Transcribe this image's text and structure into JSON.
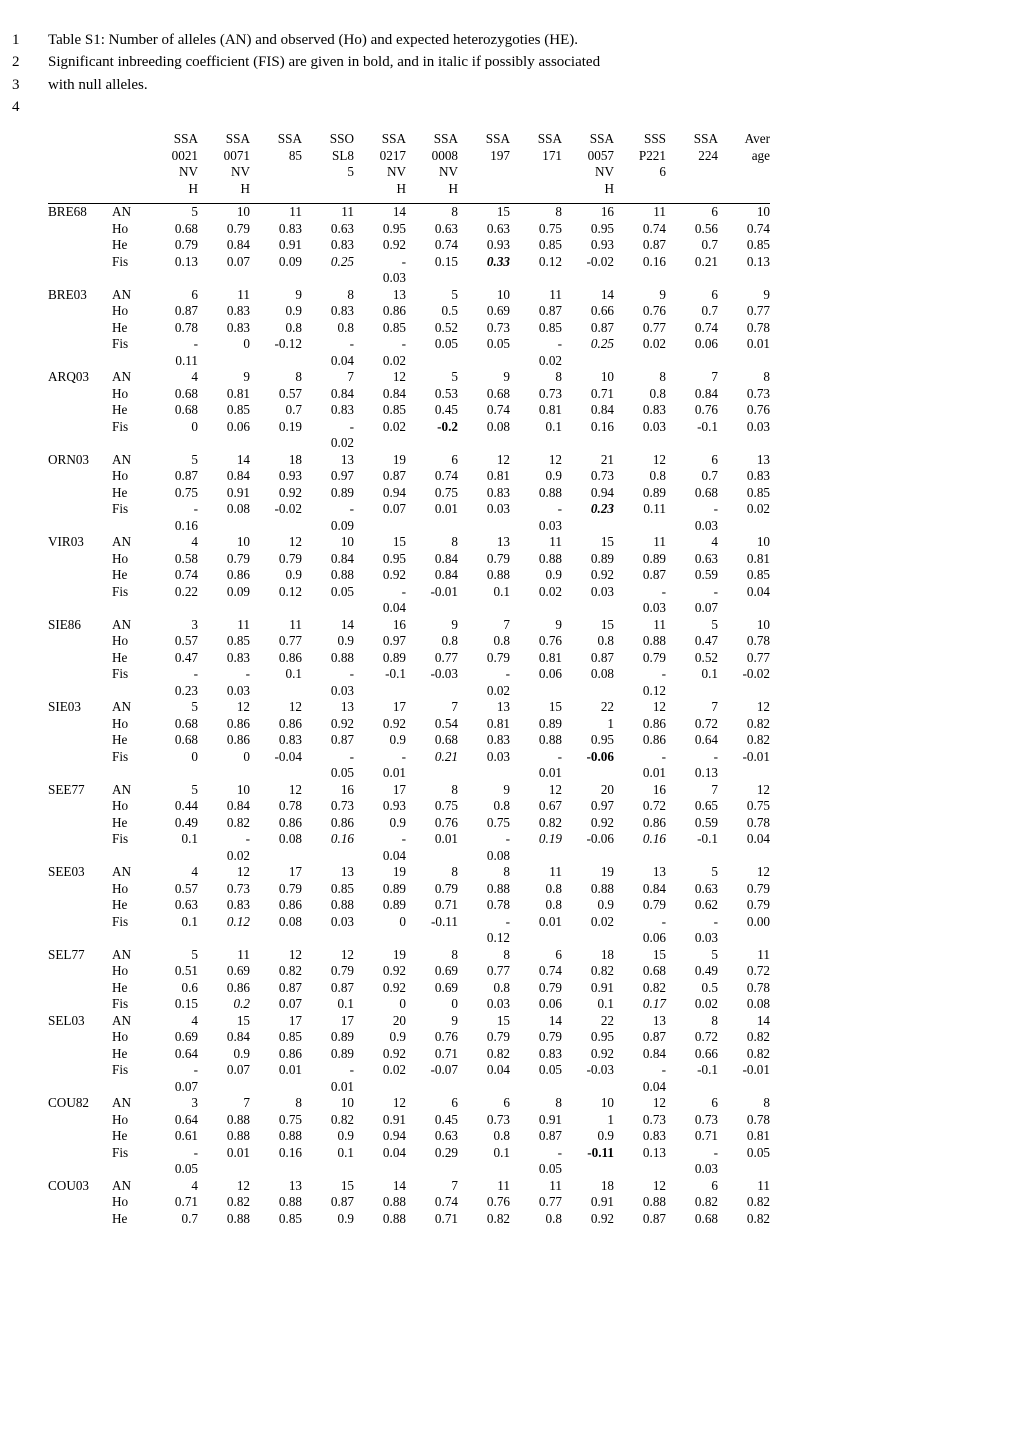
{
  "intro": [
    {
      "num": "1",
      "text": "Table S1: Number of alleles (AN) and observed (Ho) and expected heterozygoties (HE)."
    },
    {
      "num": "2",
      "text": "Significant inbreeding coefficient (FIS) are given in bold, and in italic if possibly associated"
    },
    {
      "num": "3",
      "text": "with null alleles."
    },
    {
      "num": "4",
      "text": ""
    }
  ],
  "headers": [
    [
      "",
      "",
      "SSA",
      "SSA",
      "SSA",
      "SSO",
      "SSA",
      "SSA",
      "SSA",
      "SSA",
      "SSA",
      "SSS",
      "SSA",
      "Aver"
    ],
    [
      "",
      "",
      "0021",
      "0071",
      "85",
      "SL8",
      "0217",
      "0008",
      "197",
      "171",
      "0057",
      "P221",
      "224",
      "age"
    ],
    [
      "",
      "",
      "NV",
      "NV",
      "",
      "5",
      "NV",
      "NV",
      "",
      "",
      "NV",
      "6",
      "",
      ""
    ],
    [
      "",
      "",
      "H",
      "H",
      "",
      "",
      "H",
      "H",
      "",
      "",
      "H",
      "",
      "",
      ""
    ]
  ],
  "groups": [
    {
      "name": "BRE68",
      "rows": [
        {
          "lbl": "AN",
          "v": [
            "5",
            "10",
            "11",
            "11",
            "14",
            "8",
            "15",
            "8",
            "16",
            "11",
            "6",
            "10"
          ]
        },
        {
          "lbl": "Ho",
          "v": [
            "0.68",
            "0.79",
            "0.83",
            "0.63",
            "0.95",
            "0.63",
            "0.63",
            "0.75",
            "0.95",
            "0.74",
            "0.56",
            "0.74"
          ]
        },
        {
          "lbl": "He",
          "v": [
            "0.79",
            "0.84",
            "0.91",
            "0.83",
            "0.92",
            "0.74",
            "0.93",
            "0.85",
            "0.93",
            "0.87",
            "0.7",
            "0.85"
          ]
        },
        {
          "lbl": "Fis",
          "v": [
            "0.13",
            "0.07",
            "0.09",
            {
              "t": "0.25",
              "c": "italic"
            },
            "-\n0.03",
            "0.15",
            {
              "t": "0.33",
              "c": "bolditalic"
            },
            "0.12",
            "-0.02",
            "0.16",
            "0.21",
            "0.13"
          ]
        }
      ]
    },
    {
      "name": "BRE03",
      "rows": [
        {
          "lbl": "AN",
          "v": [
            "6",
            "11",
            "9",
            "8",
            "13",
            "5",
            "10",
            "11",
            "14",
            "9",
            "6",
            "9"
          ]
        },
        {
          "lbl": "Ho",
          "v": [
            "0.87",
            "0.83",
            "0.9",
            "0.83",
            "0.86",
            "0.5",
            "0.69",
            "0.87",
            "0.66",
            "0.76",
            "0.7",
            "0.77"
          ]
        },
        {
          "lbl": "He",
          "v": [
            "0.78",
            "0.83",
            "0.8",
            "0.8",
            "0.85",
            "0.52",
            "0.73",
            "0.85",
            "0.87",
            "0.77",
            "0.74",
            "0.78"
          ]
        },
        {
          "lbl": "Fis",
          "v": [
            "-\n0.11",
            "0",
            "-0.12",
            "-\n0.04",
            "-\n0.02",
            "0.05",
            "0.05",
            "-\n0.02",
            {
              "t": "0.25",
              "c": "italic"
            },
            "0.02",
            "0.06",
            "0.01"
          ]
        }
      ]
    },
    {
      "name": "ARQ03",
      "rows": [
        {
          "lbl": "AN",
          "v": [
            "4",
            "9",
            "8",
            "7",
            "12",
            "5",
            "9",
            "8",
            "10",
            "8",
            "7",
            "8"
          ]
        },
        {
          "lbl": "Ho",
          "v": [
            "0.68",
            "0.81",
            "0.57",
            "0.84",
            "0.84",
            "0.53",
            "0.68",
            "0.73",
            "0.71",
            "0.8",
            "0.84",
            "0.73"
          ]
        },
        {
          "lbl": "He",
          "v": [
            "0.68",
            "0.85",
            "0.7",
            "0.83",
            "0.85",
            "0.45",
            "0.74",
            "0.81",
            "0.84",
            "0.83",
            "0.76",
            "0.76"
          ]
        },
        {
          "lbl": "Fis",
          "v": [
            "0",
            "0.06",
            "0.19",
            "-\n0.02",
            "0.02",
            {
              "t": "-0.2",
              "c": "bold"
            },
            "0.08",
            "0.1",
            "0.16",
            "0.03",
            "-0.1",
            "0.03"
          ]
        }
      ]
    },
    {
      "name": "ORN03",
      "rows": [
        {
          "lbl": "AN",
          "v": [
            "5",
            "14",
            "18",
            "13",
            "19",
            "6",
            "12",
            "12",
            "21",
            "12",
            "6",
            "13"
          ]
        },
        {
          "lbl": "Ho",
          "v": [
            "0.87",
            "0.84",
            "0.93",
            "0.97",
            "0.87",
            "0.74",
            "0.81",
            "0.9",
            "0.73",
            "0.8",
            "0.7",
            "0.83"
          ]
        },
        {
          "lbl": "He",
          "v": [
            "0.75",
            "0.91",
            "0.92",
            "0.89",
            "0.94",
            "0.75",
            "0.83",
            "0.88",
            "0.94",
            "0.89",
            "0.68",
            "0.85"
          ]
        },
        {
          "lbl": "Fis",
          "v": [
            "-\n0.16",
            "0.08",
            "-0.02",
            "-\n0.09",
            "0.07",
            "0.01",
            "0.03",
            "-\n0.03",
            {
              "t": "0.23",
              "c": "bolditalic"
            },
            "0.11",
            "-\n0.03",
            "0.02"
          ]
        }
      ]
    },
    {
      "name": "VIR03",
      "rows": [
        {
          "lbl": "AN",
          "v": [
            "4",
            "10",
            "12",
            "10",
            "15",
            "8",
            "13",
            "11",
            "15",
            "11",
            "4",
            "10"
          ]
        },
        {
          "lbl": "Ho",
          "v": [
            "0.58",
            "0.79",
            "0.79",
            "0.84",
            "0.95",
            "0.84",
            "0.79",
            "0.88",
            "0.89",
            "0.89",
            "0.63",
            "0.81"
          ]
        },
        {
          "lbl": "He",
          "v": [
            "0.74",
            "0.86",
            "0.9",
            "0.88",
            "0.92",
            "0.84",
            "0.88",
            "0.9",
            "0.92",
            "0.87",
            "0.59",
            "0.85"
          ]
        },
        {
          "lbl": "Fis",
          "v": [
            "0.22",
            "0.09",
            "0.12",
            "0.05",
            "-\n0.04",
            "-0.01",
            "0.1",
            "0.02",
            "0.03",
            "-\n0.03",
            "-\n0.07",
            "0.04"
          ]
        }
      ]
    },
    {
      "name": "SIE86",
      "rows": [
        {
          "lbl": "AN",
          "v": [
            "3",
            "11",
            "11",
            "14",
            "16",
            "9",
            "7",
            "9",
            "15",
            "11",
            "5",
            "10"
          ]
        },
        {
          "lbl": "Ho",
          "v": [
            "0.57",
            "0.85",
            "0.77",
            "0.9",
            "0.97",
            "0.8",
            "0.8",
            "0.76",
            "0.8",
            "0.88",
            "0.47",
            "0.78"
          ]
        },
        {
          "lbl": "He",
          "v": [
            "0.47",
            "0.83",
            "0.86",
            "0.88",
            "0.89",
            "0.77",
            "0.79",
            "0.81",
            "0.87",
            "0.79",
            "0.52",
            "0.77"
          ]
        },
        {
          "lbl": "Fis",
          "v": [
            "-\n0.23",
            "-\n0.03",
            "0.1",
            "-\n0.03",
            "-0.1",
            "-0.03",
            "-\n0.02",
            "0.06",
            "0.08",
            "-\n0.12",
            "0.1",
            "-0.02"
          ]
        }
      ]
    },
    {
      "name": "SIE03",
      "rows": [
        {
          "lbl": "AN",
          "v": [
            "5",
            "12",
            "12",
            "13",
            "17",
            "7",
            "13",
            "15",
            "22",
            "12",
            "7",
            "12"
          ]
        },
        {
          "lbl": "Ho",
          "v": [
            "0.68",
            "0.86",
            "0.86",
            "0.92",
            "0.92",
            "0.54",
            "0.81",
            "0.89",
            "1",
            "0.86",
            "0.72",
            "0.82"
          ]
        },
        {
          "lbl": "He",
          "v": [
            "0.68",
            "0.86",
            "0.83",
            "0.87",
            "0.9",
            "0.68",
            "0.83",
            "0.88",
            "0.95",
            "0.86",
            "0.64",
            "0.82"
          ]
        },
        {
          "lbl": "Fis",
          "v": [
            "0",
            "0",
            "-0.04",
            "-\n0.05",
            "-\n0.01",
            {
              "t": "0.21",
              "c": "italic"
            },
            "0.03",
            "-\n0.01",
            {
              "t": "-0.06",
              "c": "bold"
            },
            "-\n0.01",
            "-\n0.13",
            "-0.01"
          ]
        }
      ]
    },
    {
      "name": "SEE77",
      "rows": [
        {
          "lbl": "AN",
          "v": [
            "5",
            "10",
            "12",
            "16",
            "17",
            "8",
            "9",
            "12",
            "20",
            "16",
            "7",
            "12"
          ]
        },
        {
          "lbl": "Ho",
          "v": [
            "0.44",
            "0.84",
            "0.78",
            "0.73",
            "0.93",
            "0.75",
            "0.8",
            "0.67",
            "0.97",
            "0.72",
            "0.65",
            "0.75"
          ]
        },
        {
          "lbl": "He",
          "v": [
            "0.49",
            "0.82",
            "0.86",
            "0.86",
            "0.9",
            "0.76",
            "0.75",
            "0.82",
            "0.92",
            "0.86",
            "0.59",
            "0.78"
          ]
        },
        {
          "lbl": "Fis",
          "v": [
            "0.1",
            "-\n0.02",
            "0.08",
            {
              "t": "0.16",
              "c": "italic"
            },
            "-\n0.04",
            "0.01",
            "-\n0.08",
            {
              "t": "0.19",
              "c": "italic"
            },
            "-0.06",
            {
              "t": "0.16",
              "c": "italic"
            },
            "-0.1",
            "0.04"
          ]
        }
      ]
    },
    {
      "name": "SEE03",
      "rows": [
        {
          "lbl": "AN",
          "v": [
            "4",
            "12",
            "17",
            "13",
            "19",
            "8",
            "8",
            "11",
            "19",
            "13",
            "5",
            "12"
          ]
        },
        {
          "lbl": "Ho",
          "v": [
            "0.57",
            "0.73",
            "0.79",
            "0.85",
            "0.89",
            "0.79",
            "0.88",
            "0.8",
            "0.88",
            "0.84",
            "0.63",
            "0.79"
          ]
        },
        {
          "lbl": "He",
          "v": [
            "0.63",
            "0.83",
            "0.86",
            "0.88",
            "0.89",
            "0.71",
            "0.78",
            "0.8",
            "0.9",
            "0.79",
            "0.62",
            "0.79"
          ]
        },
        {
          "lbl": "Fis",
          "v": [
            "0.1",
            {
              "t": "0.12",
              "c": "italic"
            },
            "0.08",
            "0.03",
            "0",
            "-0.11",
            "-\n0.12",
            "0.01",
            "0.02",
            "-\n0.06",
            "-\n0.03",
            "0.00"
          ]
        }
      ]
    },
    {
      "name": "SEL77",
      "rows": [
        {
          "lbl": "AN",
          "v": [
            "5",
            "11",
            "12",
            "12",
            "19",
            "8",
            "8",
            "6",
            "18",
            "15",
            "5",
            "11"
          ]
        },
        {
          "lbl": "Ho",
          "v": [
            "0.51",
            "0.69",
            "0.82",
            "0.79",
            "0.92",
            "0.69",
            "0.77",
            "0.74",
            "0.82",
            "0.68",
            "0.49",
            "0.72"
          ]
        },
        {
          "lbl": "He",
          "v": [
            "0.6",
            "0.86",
            "0.87",
            "0.87",
            "0.92",
            "0.69",
            "0.8",
            "0.79",
            "0.91",
            "0.82",
            "0.5",
            "0.78"
          ]
        },
        {
          "lbl": "Fis",
          "v": [
            "0.15",
            {
              "t": "0.2",
              "c": "italic"
            },
            "0.07",
            "0.1",
            "0",
            "0",
            "0.03",
            "0.06",
            "0.1",
            {
              "t": "0.17",
              "c": "italic"
            },
            "0.02",
            "0.08"
          ]
        }
      ]
    },
    {
      "name": "SEL03",
      "rows": [
        {
          "lbl": "AN",
          "v": [
            "4",
            "15",
            "17",
            "17",
            "20",
            "9",
            "15",
            "14",
            "22",
            "13",
            "8",
            "14"
          ]
        },
        {
          "lbl": "Ho",
          "v": [
            "0.69",
            "0.84",
            "0.85",
            "0.89",
            "0.9",
            "0.76",
            "0.79",
            "0.79",
            "0.95",
            "0.87",
            "0.72",
            "0.82"
          ]
        },
        {
          "lbl": "He",
          "v": [
            "0.64",
            "0.9",
            "0.86",
            "0.89",
            "0.92",
            "0.71",
            "0.82",
            "0.83",
            "0.92",
            "0.84",
            "0.66",
            "0.82"
          ]
        },
        {
          "lbl": "Fis",
          "v": [
            "-\n0.07",
            "0.07",
            "0.01",
            "-\n0.01",
            "0.02",
            "-0.07",
            "0.04",
            "0.05",
            "-0.03",
            "-\n0.04",
            "-0.1",
            "-0.01"
          ]
        }
      ]
    },
    {
      "name": "COU82",
      "rows": [
        {
          "lbl": "AN",
          "v": [
            "3",
            "7",
            "8",
            "10",
            "12",
            "6",
            "6",
            "8",
            "10",
            "12",
            "6",
            "8"
          ]
        },
        {
          "lbl": "Ho",
          "v": [
            "0.64",
            "0.88",
            "0.75",
            "0.82",
            "0.91",
            "0.45",
            "0.73",
            "0.91",
            "1",
            "0.73",
            "0.73",
            "0.78"
          ]
        },
        {
          "lbl": "He",
          "v": [
            "0.61",
            "0.88",
            "0.88",
            "0.9",
            "0.94",
            "0.63",
            "0.8",
            "0.87",
            "0.9",
            "0.83",
            "0.71",
            "0.81"
          ]
        },
        {
          "lbl": "Fis",
          "v": [
            "-\n0.05",
            "0.01",
            "0.16",
            "0.1",
            "0.04",
            "0.29",
            "0.1",
            "-\n0.05",
            {
              "t": "-0.11",
              "c": "bold"
            },
            "0.13",
            "-\n0.03",
            "0.05"
          ]
        }
      ]
    },
    {
      "name": "COU03",
      "rows": [
        {
          "lbl": "AN",
          "v": [
            "4",
            "12",
            "13",
            "15",
            "14",
            "7",
            "11",
            "11",
            "18",
            "12",
            "6",
            "11"
          ]
        },
        {
          "lbl": "Ho",
          "v": [
            "0.71",
            "0.82",
            "0.88",
            "0.87",
            "0.88",
            "0.74",
            "0.76",
            "0.77",
            "0.91",
            "0.88",
            "0.82",
            "0.82"
          ]
        },
        {
          "lbl": "He",
          "v": [
            "0.7",
            "0.88",
            "0.85",
            "0.9",
            "0.88",
            "0.71",
            "0.82",
            "0.8",
            "0.92",
            "0.87",
            "0.68",
            "0.82"
          ]
        }
      ]
    }
  ]
}
